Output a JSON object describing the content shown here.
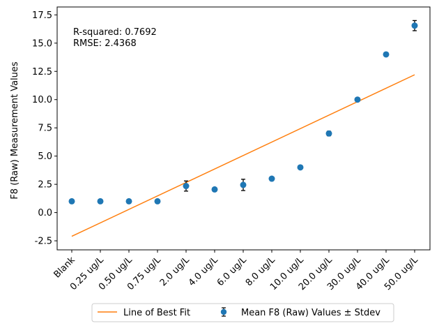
{
  "chart_data": {
    "type": "scatter",
    "title": "",
    "xlabel": "",
    "ylabel": "F8 (Raw) Measurement Values",
    "categories": [
      "Blank",
      "0.25 ug/L",
      "0.50 ug/L",
      "0.75 ug/L",
      "2.0 ug/L",
      "4.0 ug/L",
      "6.0 ug/L",
      "8.0 ug/L",
      "10.0 ug/L",
      "20.0 ug/L",
      "30.0 ug/L",
      "40.0 ug/L",
      "50.0 ug/L"
    ],
    "ylim": [
      -3.3,
      18.2
    ],
    "yticks": [
      -2.5,
      0.0,
      2.5,
      5.0,
      7.5,
      10.0,
      12.5,
      15.0,
      17.5
    ],
    "grid": false,
    "legend_position": "bottom-center",
    "annotations": [
      "R-squared: 0.7692",
      "RMSE: 2.4368"
    ],
    "series": [
      {
        "name": "Mean F8 (Raw) Values ± Stdev",
        "kind": "scatter-errorbar",
        "color": "#1f77b4",
        "values": [
          1.0,
          1.0,
          1.0,
          1.0,
          2.35,
          2.05,
          2.45,
          3.0,
          4.0,
          7.0,
          10.0,
          14.0,
          16.55
        ],
        "errors": [
          0.05,
          0.05,
          0.05,
          0.05,
          0.45,
          0.05,
          0.5,
          0.05,
          0.05,
          0.2,
          0.05,
          0.05,
          0.45
        ]
      },
      {
        "name": "Line of Best Fit",
        "kind": "line",
        "color": "#ff7f0e",
        "start": -2.1,
        "end": 12.2
      }
    ]
  }
}
